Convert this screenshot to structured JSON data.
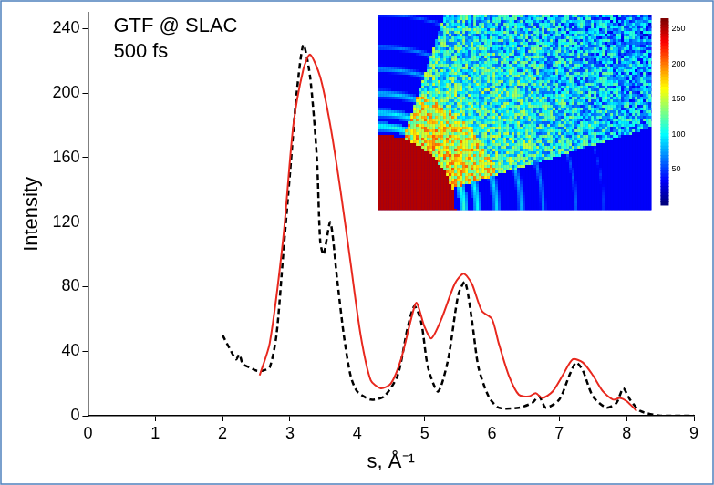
{
  "chart_data": {
    "type": "line",
    "annotations": [
      "GTF @ SLAC",
      "500 fs"
    ],
    "x_label": "s, Å⁻¹",
    "y_label": "Intensity",
    "xlim": [
      0,
      9
    ],
    "xticks": [
      0,
      1,
      2,
      3,
      4,
      5,
      6,
      7,
      8,
      9
    ],
    "ylim": [
      0,
      250
    ],
    "yticks": [
      0,
      40,
      80,
      120,
      160,
      200,
      240
    ],
    "grid": false,
    "series": [
      {
        "color": "#e8281e",
        "line_style": "solid",
        "x": [
          2.55,
          2.7,
          2.9,
          3.05,
          3.2,
          3.3,
          3.45,
          3.6,
          3.75,
          3.9,
          4.05,
          4.2,
          4.35,
          4.5,
          4.65,
          4.8,
          4.88,
          5.0,
          5.1,
          5.25,
          5.45,
          5.58,
          5.7,
          5.85,
          6.0,
          6.1,
          6.25,
          6.4,
          6.55,
          6.65,
          6.75,
          6.9,
          7.05,
          7.2,
          7.35,
          7.5,
          7.65,
          7.8,
          7.9,
          8.0,
          8.15
        ],
        "values": [
          25,
          45,
          110,
          180,
          215,
          224,
          210,
          180,
          140,
          95,
          50,
          22,
          17,
          20,
          35,
          60,
          70,
          55,
          48,
          60,
          82,
          88,
          82,
          65,
          60,
          45,
          25,
          13,
          12,
          14,
          11,
          15,
          25,
          35,
          33,
          25,
          15,
          10,
          11,
          9,
          3
        ]
      },
      {
        "color": "#000000",
        "line_style": "dashed",
        "x": [
          2.0,
          2.1,
          2.2,
          2.25,
          2.3,
          2.4,
          2.5,
          2.6,
          2.7,
          2.8,
          2.9,
          3.0,
          3.1,
          3.2,
          3.3,
          3.4,
          3.45,
          3.5,
          3.6,
          3.7,
          3.8,
          3.9,
          4.0,
          4.2,
          4.4,
          4.6,
          4.75,
          4.85,
          4.95,
          5.05,
          5.2,
          5.35,
          5.5,
          5.6,
          5.7,
          5.8,
          5.95,
          6.1,
          6.4,
          6.6,
          6.7,
          6.8,
          7.0,
          7.15,
          7.25,
          7.35,
          7.5,
          7.7,
          7.85,
          7.95,
          8.05,
          8.2,
          8.5,
          8.8,
          9.0
        ],
        "values": [
          50,
          42,
          35,
          38,
          32,
          30,
          28,
          28,
          30,
          50,
          100,
          150,
          200,
          230,
          210,
          160,
          108,
          100,
          120,
          85,
          50,
          25,
          15,
          10,
          12,
          25,
          55,
          68,
          58,
          30,
          15,
          35,
          75,
          83,
          60,
          30,
          12,
          5,
          5,
          8,
          12,
          5,
          10,
          25,
          33,
          28,
          12,
          5,
          8,
          17,
          10,
          3,
          0,
          0,
          0
        ]
      }
    ],
    "inset_colorbar": {
      "range": [
        0,
        265
      ],
      "ticks": [
        50,
        100,
        150,
        200,
        250
      ]
    }
  }
}
